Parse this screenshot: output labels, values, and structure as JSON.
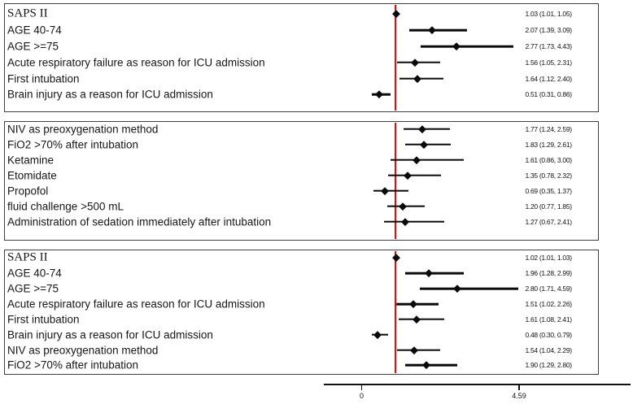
{
  "figure_title": "",
  "accent_colors": {
    "reference_line": "#FE0000",
    "marker": "#0A0A0A",
    "panel_border": "#3F3F3F"
  },
  "chart_data": {
    "type": "forest",
    "note": "Horizontal point estimates (diamonds) with 95% CI whiskers; vertical red reference line at 1.0",
    "reference_value": 1.0,
    "x_axis": {
      "ticks": [
        {
          "value": 0,
          "label": "0"
        },
        {
          "value": 4.59,
          "label": "4.59"
        }
      ]
    },
    "panels": [
      {
        "name": "panel-1",
        "rows": [
          {
            "label": "SAPS II",
            "serif": true,
            "estimate": 1.03,
            "ci_low": 1.01,
            "ci_high": 1.05,
            "value_text": "1.03 (1.01, 1.05)"
          },
          {
            "label": "AGE 40-74",
            "serif": false,
            "estimate": 2.07,
            "ci_low": 1.39,
            "ci_high": 3.09,
            "value_text": "2.07 (1.39, 3.09)"
          },
          {
            "label": "AGE >=75",
            "serif": false,
            "estimate": 2.77,
            "ci_low": 1.73,
            "ci_high": 4.43,
            "value_text": "2.77 (1.73, 4.43)"
          },
          {
            "label": "Acute respiratory failure as reason for ICU admission",
            "serif": false,
            "estimate": 1.56,
            "ci_low": 1.05,
            "ci_high": 2.31,
            "value_text": "1.56 (1.05, 2.31)"
          },
          {
            "label": "First intubation",
            "serif": false,
            "estimate": 1.64,
            "ci_low": 1.12,
            "ci_high": 2.4,
            "value_text": "1.64 (1.12, 2.40)"
          },
          {
            "label": "Brain injury as a reason for ICU admission",
            "serif": false,
            "estimate": 0.51,
            "ci_low": 0.31,
            "ci_high": 0.86,
            "value_text": "0.51 (0.31, 0.86)"
          }
        ]
      },
      {
        "name": "panel-2",
        "rows": [
          {
            "label": "NIV as preoxygenation method",
            "serif": false,
            "estimate": 1.77,
            "ci_low": 1.24,
            "ci_high": 2.59,
            "value_text": "1.77 (1.24, 2.59)"
          },
          {
            "label": "FiO2 >70% after intubation",
            "serif": false,
            "estimate": 1.83,
            "ci_low": 1.29,
            "ci_high": 2.61,
            "value_text": "1.83 (1.29, 2.61)"
          },
          {
            "label": "Ketamine",
            "serif": false,
            "estimate": 1.61,
            "ci_low": 0.86,
            "ci_high": 3.0,
            "value_text": "1.61 (0.86, 3.00)"
          },
          {
            "label": "Etomidate",
            "serif": false,
            "estimate": 1.35,
            "ci_low": 0.78,
            "ci_high": 2.32,
            "value_text": "1.35 (0.78, 2.32)"
          },
          {
            "label": "Propofol",
            "serif": false,
            "estimate": 0.69,
            "ci_low": 0.35,
            "ci_high": 1.37,
            "value_text": "0.69 (0.35, 1.37)"
          },
          {
            "label": "fluid challenge >500 mL",
            "serif": false,
            "estimate": 1.2,
            "ci_low": 0.77,
            "ci_high": 1.85,
            "value_text": "1.20 (0.77, 1.85)"
          },
          {
            "label": "Administration of sedation immediately after intubation",
            "serif": false,
            "estimate": 1.27,
            "ci_low": 0.67,
            "ci_high": 2.41,
            "value_text": "1.27 (0.67, 2.41)"
          }
        ]
      },
      {
        "name": "panel-3",
        "rows": [
          {
            "label": "SAPS II",
            "serif": true,
            "estimate": 1.02,
            "ci_low": 1.01,
            "ci_high": 1.03,
            "value_text": "1.02 (1.01, 1.03)"
          },
          {
            "label": "AGE 40-74",
            "serif": false,
            "estimate": 1.96,
            "ci_low": 1.28,
            "ci_high": 2.99,
            "value_text": "1.96 (1.28, 2.99)"
          },
          {
            "label": "AGE >=75",
            "serif": false,
            "estimate": 2.8,
            "ci_low": 1.71,
            "ci_high": 4.59,
            "value_text": "2.80 (1.71, 4.59)"
          },
          {
            "label": "Acute respiratory failure as reason for ICU admission",
            "serif": false,
            "estimate": 1.51,
            "ci_low": 1.02,
            "ci_high": 2.26,
            "value_text": "1.51 (1.02, 2.26)"
          },
          {
            "label": "First intubation",
            "serif": false,
            "estimate": 1.61,
            "ci_low": 1.08,
            "ci_high": 2.41,
            "value_text": "1.61 (1.08, 2.41)"
          },
          {
            "label": "Brain injury as a reason for ICU admission",
            "serif": false,
            "estimate": 0.48,
            "ci_low": 0.3,
            "ci_high": 0.79,
            "value_text": "0.48 (0.30, 0.79)"
          },
          {
            "label": "NIV as preoxygenation method",
            "serif": false,
            "estimate": 1.54,
            "ci_low": 1.04,
            "ci_high": 2.29,
            "value_text": "1.54 (1.04, 2.29)"
          },
          {
            "label": "FiO2 >70% after intubation",
            "serif": false,
            "estimate": 1.9,
            "ci_low": 1.29,
            "ci_high": 2.8,
            "value_text": "1.90 (1.29, 2.80)"
          }
        ]
      }
    ]
  }
}
